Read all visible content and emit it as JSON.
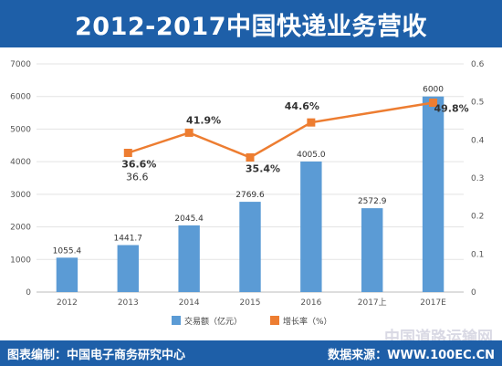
{
  "title": "2012-2017中国快递业务营收",
  "footer": {
    "left": "图表编制：中国电子商务研究中心",
    "right": "数据来源：WWW.100EC.CN"
  },
  "watermark": "中国道路运输网",
  "colors": {
    "bar": "#5b9bd5",
    "line": "#ed7d31",
    "title_band": "#1e5fa8"
  },
  "chart_data": {
    "type": "bar",
    "title": "2012-2017中国快递业务营收",
    "categories": [
      "2012",
      "2013",
      "2014",
      "2015",
      "2016",
      "2017上",
      "2017E"
    ],
    "y_left": {
      "min": 0,
      "max": 7000,
      "ticks": [
        "0",
        "1000",
        "2000",
        "3000",
        "4000",
        "5000",
        "6000",
        "7000"
      ]
    },
    "y_right": {
      "min": 0,
      "max": 0.6,
      "ticks": [
        "0",
        "0.1",
        "0.2",
        "0.3",
        "0.4",
        "0.5",
        "0.6"
      ]
    },
    "series": [
      {
        "name": "交易额（亿元）",
        "type": "bar",
        "axis": "left",
        "values": [
          1055.4,
          1441.7,
          2045.4,
          2769.6,
          4005.0,
          2572.9,
          6000
        ],
        "labels": [
          "1055.4",
          "1441.7",
          "2045.4",
          "2769.6",
          "4005.0",
          "2572.9",
          "6000"
        ]
      },
      {
        "name": "增长率（%）",
        "type": "line",
        "axis": "right",
        "values": [
          null,
          0.366,
          0.419,
          0.354,
          0.446,
          null,
          0.498
        ],
        "labels": [
          "",
          "36.6%",
          "41.9%",
          "35.4%",
          "44.6%",
          "",
          "49.8%"
        ]
      }
    ],
    "annotations": [
      "36.6"
    ],
    "legend_position": "bottom",
    "grid": true
  }
}
